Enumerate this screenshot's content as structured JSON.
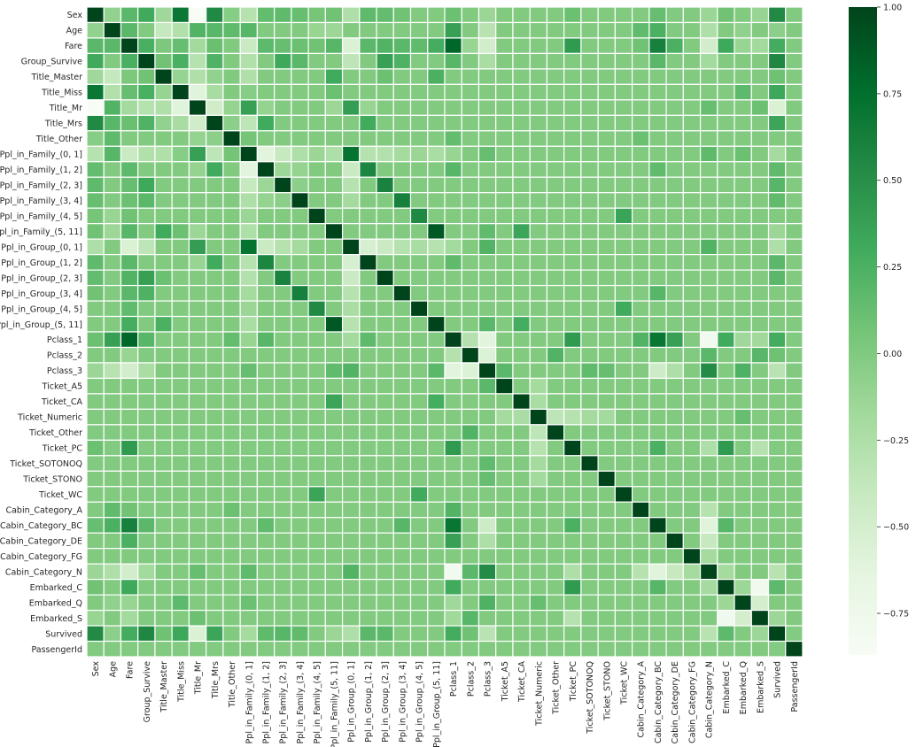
{
  "chart_data": {
    "type": "heatmap",
    "title": "",
    "xlabel": "",
    "ylabel": "",
    "colormap": "Greens",
    "colormap_stops": [
      "#f7fcf5",
      "#e5f5e0",
      "#c7e9c0",
      "#a1d99b",
      "#74c476",
      "#41ab5d",
      "#238b45",
      "#006d2c",
      "#00441b"
    ],
    "cell_border_color": "#ffffff",
    "value_range": [
      -0.87,
      1.0
    ],
    "colorbar": {
      "ticks": [
        1.0,
        0.75,
        0.5,
        0.25,
        0.0,
        -0.25,
        -0.5,
        -0.75
      ],
      "tick_labels": [
        "1.00",
        "0.75",
        "0.50",
        "0.25",
        "0.00",
        "−0.25",
        "−0.50",
        "−0.75"
      ]
    },
    "labels": [
      "Sex",
      "Age",
      "Fare",
      "Group_Survive",
      "Title_Master",
      "Title_Miss",
      "Title_Mr",
      "Title_Mrs",
      "Title_Other",
      "Ppl_in_Family_(0, 1]",
      "Ppl_in_Family_(1, 2]",
      "Ppl_in_Family_(2, 3]",
      "Ppl_in_Family_(3, 4]",
      "Ppl_in_Family_(4, 5]",
      "Ppl_in_Family_(5, 11]",
      "Ppl_in_Group_(0, 1]",
      "Ppl_in_Group_(1, 2]",
      "Ppl_in_Group_(2, 3]",
      "Ppl_in_Group_(3, 4]",
      "Ppl_in_Group_(4, 5]",
      "Ppl_in_Group_(5, 11]",
      "Pclass_1",
      "Pclass_2",
      "Pclass_3",
      "Ticket_A5",
      "Ticket_CA",
      "Ticket_Numeric",
      "Ticket_Other",
      "Ticket_PC",
      "Ticket_SOTONOQ",
      "Ticket_STONO",
      "Ticket_WC",
      "Cabin_Category_A",
      "Cabin_Category_BC",
      "Cabin_Category_DE",
      "Cabin_Category_FG",
      "Cabin_Category_N",
      "Embarked_C",
      "Embarked_Q",
      "Embarked_S",
      "Survived",
      "PassengerId"
    ],
    "default_value": 0.0,
    "diagonal_value": 1.0,
    "pairs": [
      [
        "Sex",
        "Age",
        -0.09
      ],
      [
        "Sex",
        "Fare",
        0.18
      ],
      [
        "Sex",
        "Group_Survive",
        0.31
      ],
      [
        "Sex",
        "Title_Master",
        -0.16
      ],
      [
        "Sex",
        "Title_Miss",
        0.69
      ],
      [
        "Sex",
        "Title_Mr",
        -0.87
      ],
      [
        "Sex",
        "Title_Mrs",
        0.55
      ],
      [
        "Sex",
        "Title_Other",
        -0.03
      ],
      [
        "Sex",
        "Ppl_in_Family_(0, 1]",
        -0.3
      ],
      [
        "Sex",
        "Ppl_in_Family_(1, 2]",
        0.14
      ],
      [
        "Sex",
        "Ppl_in_Family_(2, 3]",
        0.16
      ],
      [
        "Sex",
        "Ppl_in_Family_(3, 4]",
        0.12
      ],
      [
        "Sex",
        "Ppl_in_Family_(4, 5]",
        0.05
      ],
      [
        "Sex",
        "Ppl_in_Family_(5, 11]",
        0.08
      ],
      [
        "Sex",
        "Ppl_in_Group_(0, 1]",
        -0.25
      ],
      [
        "Sex",
        "Ppl_in_Group_(1, 2]",
        0.16
      ],
      [
        "Sex",
        "Ppl_in_Group_(2, 3]",
        0.14
      ],
      [
        "Sex",
        "Ppl_in_Group_(3, 4]",
        0.08
      ],
      [
        "Sex",
        "Pclass_1",
        0.1
      ],
      [
        "Sex",
        "Pclass_3",
        -0.14
      ],
      [
        "Sex",
        "Ticket_PC",
        0.1
      ],
      [
        "Sex",
        "Cabin_Category_BC",
        0.12
      ],
      [
        "Sex",
        "Cabin_Category_N",
        -0.14
      ],
      [
        "Sex",
        "Embarked_C",
        0.08
      ],
      [
        "Sex",
        "Embarked_S",
        -0.12
      ],
      [
        "Sex",
        "Survived",
        0.54
      ],
      [
        "Age",
        "Fare",
        0.18
      ],
      [
        "Age",
        "Title_Master",
        -0.39
      ],
      [
        "Age",
        "Title_Miss",
        -0.27
      ],
      [
        "Age",
        "Title_Mr",
        0.22
      ],
      [
        "Age",
        "Title_Mrs",
        0.19
      ],
      [
        "Age",
        "Title_Other",
        0.16
      ],
      [
        "Age",
        "Ppl_in_Family_(0, 1]",
        0.2
      ],
      [
        "Age",
        "Ppl_in_Family_(4, 5]",
        -0.12
      ],
      [
        "Age",
        "Ppl_in_Family_(5, 11]",
        -0.15
      ],
      [
        "Age",
        "Pclass_1",
        0.38
      ],
      [
        "Age",
        "Pclass_2",
        0.0
      ],
      [
        "Age",
        "Pclass_3",
        -0.31
      ],
      [
        "Age",
        "Cabin_Category_A",
        0.15
      ],
      [
        "Age",
        "Cabin_Category_BC",
        0.25
      ],
      [
        "Age",
        "Cabin_Category_N",
        -0.25
      ],
      [
        "Age",
        "Embarked_Q",
        -0.08
      ],
      [
        "Age",
        "Survived",
        -0.06
      ],
      [
        "Fare",
        "Group_Survive",
        0.26
      ],
      [
        "Fare",
        "Title_Master",
        0.02
      ],
      [
        "Fare",
        "Title_Miss",
        0.12
      ],
      [
        "Fare",
        "Title_Mr",
        -0.18
      ],
      [
        "Fare",
        "Title_Mrs",
        0.11
      ],
      [
        "Fare",
        "Ppl_in_Family_(0, 1]",
        -0.42
      ],
      [
        "Fare",
        "Ppl_in_Family_(1, 2]",
        0.17
      ],
      [
        "Fare",
        "Ppl_in_Family_(2, 3]",
        0.12
      ],
      [
        "Fare",
        "Ppl_in_Family_(3, 4]",
        0.1
      ],
      [
        "Fare",
        "Ppl_in_Family_(4, 5]",
        0.08
      ],
      [
        "Fare",
        "Ppl_in_Family_(5, 11]",
        0.2
      ],
      [
        "Fare",
        "Ppl_in_Group_(0, 1]",
        -0.55
      ],
      [
        "Fare",
        "Ppl_in_Group_(1, 2]",
        0.18
      ],
      [
        "Fare",
        "Ppl_in_Group_(2, 3]",
        0.22
      ],
      [
        "Fare",
        "Ppl_in_Group_(3, 4]",
        0.18
      ],
      [
        "Fare",
        "Ppl_in_Group_(4, 5]",
        0.15
      ],
      [
        "Fare",
        "Ppl_in_Group_(5, 11]",
        0.28
      ],
      [
        "Fare",
        "Pclass_1",
        0.8
      ],
      [
        "Fare",
        "Pclass_2",
        -0.12
      ],
      [
        "Fare",
        "Pclass_3",
        -0.48
      ],
      [
        "Fare",
        "Ticket_PC",
        0.42
      ],
      [
        "Fare",
        "Cabin_Category_A",
        0.08
      ],
      [
        "Fare",
        "Cabin_Category_BC",
        0.62
      ],
      [
        "Fare",
        "Cabin_Category_DE",
        0.25
      ],
      [
        "Fare",
        "Cabin_Category_N",
        -0.48
      ],
      [
        "Fare",
        "Embarked_C",
        0.32
      ],
      [
        "Fare",
        "Embarked_Q",
        -0.12
      ],
      [
        "Fare",
        "Embarked_S",
        -0.18
      ],
      [
        "Fare",
        "Survived",
        0.29
      ],
      [
        "Group_Survive",
        "Title_Master",
        0.08
      ],
      [
        "Group_Survive",
        "Title_Miss",
        0.26
      ],
      [
        "Group_Survive",
        "Title_Mr",
        -0.3
      ],
      [
        "Group_Survive",
        "Title_Mrs",
        0.23
      ],
      [
        "Group_Survive",
        "Ppl_in_Family_(0, 1]",
        -0.27
      ],
      [
        "Group_Survive",
        "Ppl_in_Family_(2, 3]",
        0.32
      ],
      [
        "Group_Survive",
        "Ppl_in_Family_(3, 4]",
        0.18
      ],
      [
        "Group_Survive",
        "Ppl_in_Group_(0, 1]",
        -0.35
      ],
      [
        "Group_Survive",
        "Ppl_in_Group_(2, 3]",
        0.38
      ],
      [
        "Group_Survive",
        "Ppl_in_Group_(3, 4]",
        0.24
      ],
      [
        "Group_Survive",
        "Pclass_1",
        0.2
      ],
      [
        "Group_Survive",
        "Pclass_3",
        -0.22
      ],
      [
        "Group_Survive",
        "Cabin_Category_BC",
        0.18
      ],
      [
        "Group_Survive",
        "Cabin_Category_N",
        -0.18
      ],
      [
        "Group_Survive",
        "Survived",
        0.56
      ],
      [
        "Title_Master",
        "Title_Miss",
        -0.11
      ],
      [
        "Title_Master",
        "Title_Mr",
        -0.26
      ],
      [
        "Title_Master",
        "Title_Mrs",
        -0.09
      ],
      [
        "Title_Master",
        "Ppl_in_Family_(0, 1]",
        -0.26
      ],
      [
        "Title_Master",
        "Ppl_in_Family_(5, 11]",
        0.3
      ],
      [
        "Title_Master",
        "Ppl_in_Group_(5, 11]",
        0.25
      ],
      [
        "Title_Master",
        "Ppl_in_Group_(2, 3]",
        0.1
      ],
      [
        "Title_Master",
        "Survived",
        0.09
      ],
      [
        "Title_Miss",
        "Title_Mr",
        -0.6
      ],
      [
        "Title_Miss",
        "Title_Mrs",
        -0.21
      ],
      [
        "Title_Miss",
        "Ppl_in_Family_(0, 1]",
        -0.03
      ],
      [
        "Title_Miss",
        "Ppl_in_Family_(5, 11]",
        0.1
      ],
      [
        "Title_Miss",
        "Embarked_Q",
        0.17
      ],
      [
        "Title_Miss",
        "Survived",
        0.33
      ],
      [
        "Title_Mr",
        "Title_Mrs",
        -0.47
      ],
      [
        "Title_Mr",
        "Title_Other",
        -0.1
      ],
      [
        "Title_Mr",
        "Ppl_in_Family_(0, 1]",
        0.38
      ],
      [
        "Title_Mr",
        "Ppl_in_Family_(1, 2]",
        -0.1
      ],
      [
        "Title_Mr",
        "Ppl_in_Family_(5, 11]",
        -0.15
      ],
      [
        "Title_Mr",
        "Ppl_in_Group_(0, 1]",
        0.4
      ],
      [
        "Title_Mr",
        "Ppl_in_Group_(1, 2]",
        -0.12
      ],
      [
        "Title_Mr",
        "Cabin_Category_N",
        0.12
      ],
      [
        "Title_Mr",
        "Embarked_S",
        0.1
      ],
      [
        "Title_Mr",
        "Survived",
        -0.55
      ],
      [
        "Title_Mrs",
        "Title_Other",
        -0.06
      ],
      [
        "Title_Mrs",
        "Ppl_in_Family_(0, 1]",
        -0.35
      ],
      [
        "Title_Mrs",
        "Ppl_in_Family_(1, 2]",
        0.3
      ],
      [
        "Title_Mrs",
        "Ppl_in_Group_(1, 2]",
        0.3
      ],
      [
        "Title_Mrs",
        "Survived",
        0.34
      ],
      [
        "Title_Other",
        "Ppl_in_Family_(0, 1]",
        0.06
      ],
      [
        "Title_Other",
        "Pclass_1",
        0.14
      ],
      [
        "Title_Other",
        "Cabin_Category_A",
        0.1
      ],
      [
        "Ppl_in_Family_(0, 1]",
        "Ppl_in_Family_(1, 2]",
        -0.62
      ],
      [
        "Ppl_in_Family_(0, 1]",
        "Ppl_in_Family_(2, 3]",
        -0.4
      ],
      [
        "Ppl_in_Family_(0, 1]",
        "Ppl_in_Family_(3, 4]",
        -0.25
      ],
      [
        "Ppl_in_Family_(0, 1]",
        "Ppl_in_Family_(4, 5]",
        -0.14
      ],
      [
        "Ppl_in_Family_(0, 1]",
        "Ppl_in_Family_(5, 11]",
        -0.25
      ],
      [
        "Ppl_in_Family_(0, 1]",
        "Ppl_in_Group_(0, 1]",
        0.72
      ],
      [
        "Ppl_in_Family_(0, 1]",
        "Ppl_in_Group_(1, 2]",
        -0.3
      ],
      [
        "Ppl_in_Family_(0, 1]",
        "Ppl_in_Group_(2, 3]",
        -0.28
      ],
      [
        "Ppl_in_Family_(0, 1]",
        "Ppl_in_Group_(3, 4]",
        -0.2
      ],
      [
        "Ppl_in_Family_(0, 1]",
        "Ppl_in_Group_(4, 5]",
        -0.14
      ],
      [
        "Ppl_in_Family_(0, 1]",
        "Ppl_in_Group_(5, 11]",
        -0.22
      ],
      [
        "Ppl_in_Family_(0, 1]",
        "Pclass_1",
        -0.12
      ],
      [
        "Ppl_in_Family_(0, 1]",
        "Pclass_3",
        0.12
      ],
      [
        "Ppl_in_Family_(0, 1]",
        "Cabin_Category_N",
        0.16
      ],
      [
        "Ppl_in_Family_(0, 1]",
        "Embarked_Q",
        0.1
      ],
      [
        "Ppl_in_Family_(0, 1]",
        "Survived",
        -0.2
      ],
      [
        "Ppl_in_Family_(1, 2]",
        "Ppl_in_Family_(2, 3]",
        -0.15
      ],
      [
        "Ppl_in_Family_(1, 2]",
        "Ppl_in_Family_(3, 4]",
        -0.1
      ],
      [
        "Ppl_in_Family_(1, 2]",
        "Ppl_in_Group_(0, 1]",
        -0.42
      ],
      [
        "Ppl_in_Family_(1, 2]",
        "Ppl_in_Group_(1, 2]",
        0.58
      ],
      [
        "Ppl_in_Family_(1, 2]",
        "Pclass_1",
        0.2
      ],
      [
        "Ppl_in_Family_(1, 2]",
        "Cabin_Category_BC",
        0.15
      ],
      [
        "Ppl_in_Family_(1, 2]",
        "Survived",
        0.16
      ],
      [
        "Ppl_in_Family_(2, 3]",
        "Ppl_in_Family_(3, 4]",
        -0.06
      ],
      [
        "Ppl_in_Family_(2, 3]",
        "Ppl_in_Group_(0, 1]",
        -0.3
      ],
      [
        "Ppl_in_Family_(2, 3]",
        "Ppl_in_Group_(2, 3]",
        0.6
      ],
      [
        "Ppl_in_Family_(2, 3]",
        "Survived",
        0.2
      ],
      [
        "Ppl_in_Family_(3, 4]",
        "Ppl_in_Group_(3, 4]",
        0.62
      ],
      [
        "Ppl_in_Family_(3, 4]",
        "Ppl_in_Group_(0, 1]",
        -0.2
      ],
      [
        "Ppl_in_Family_(3, 4]",
        "Survived",
        0.15
      ],
      [
        "Ppl_in_Family_(4, 5]",
        "Ppl_in_Group_(4, 5]",
        0.55
      ],
      [
        "Ppl_in_Family_(4, 5]",
        "Ticket_WC",
        0.35
      ],
      [
        "Ppl_in_Family_(5, 11]",
        "Ppl_in_Group_(5, 11]",
        0.88
      ],
      [
        "Ppl_in_Family_(5, 11]",
        "Ticket_CA",
        0.34
      ],
      [
        "Ppl_in_Family_(5, 11]",
        "Pclass_3",
        0.15
      ],
      [
        "Ppl_in_Family_(5, 11]",
        "Survived",
        -0.14
      ],
      [
        "Ppl_in_Group_(0, 1]",
        "Ppl_in_Group_(1, 2]",
        -0.52
      ],
      [
        "Ppl_in_Group_(0, 1]",
        "Ppl_in_Group_(2, 3]",
        -0.42
      ],
      [
        "Ppl_in_Group_(0, 1]",
        "Ppl_in_Group_(3, 4]",
        -0.3
      ],
      [
        "Ppl_in_Group_(0, 1]",
        "Ppl_in_Group_(4, 5]",
        -0.22
      ],
      [
        "Ppl_in_Group_(0, 1]",
        "Ppl_in_Group_(5, 11]",
        -0.3
      ],
      [
        "Ppl_in_Group_(0, 1]",
        "Pclass_1",
        -0.18
      ],
      [
        "Ppl_in_Group_(0, 1]",
        "Pclass_3",
        0.22
      ],
      [
        "Ppl_in_Group_(0, 1]",
        "Cabin_Category_N",
        0.22
      ],
      [
        "Ppl_in_Group_(0, 1]",
        "Survived",
        -0.25
      ],
      [
        "Ppl_in_Group_(1, 2]",
        "Pclass_1",
        0.16
      ],
      [
        "Ppl_in_Group_(1, 2]",
        "Survived",
        0.18
      ],
      [
        "Ppl_in_Group_(2, 3]",
        "Survived",
        0.18
      ],
      [
        "Ppl_in_Group_(3, 4]",
        "Cabin_Category_BC",
        0.2
      ],
      [
        "Ppl_in_Group_(4, 5]",
        "Ticket_WC",
        0.3
      ],
      [
        "Ppl_in_Group_(5, 11]",
        "Ticket_CA",
        0.28
      ],
      [
        "Ppl_in_Group_(5, 11]",
        "Pclass_3",
        0.18
      ],
      [
        "Pclass_1",
        "Pclass_2",
        -0.29
      ],
      [
        "Pclass_1",
        "Pclass_3",
        -0.62
      ],
      [
        "Pclass_1",
        "Ticket_PC",
        0.42
      ],
      [
        "Pclass_1",
        "Cabin_Category_A",
        0.22
      ],
      [
        "Pclass_1",
        "Cabin_Category_BC",
        0.7
      ],
      [
        "Pclass_1",
        "Cabin_Category_DE",
        0.38
      ],
      [
        "Pclass_1",
        "Cabin_Category_N",
        -0.79
      ],
      [
        "Pclass_1",
        "Embarked_C",
        0.3
      ],
      [
        "Pclass_1",
        "Embarked_Q",
        -0.16
      ],
      [
        "Pclass_1",
        "Embarked_S",
        -0.17
      ],
      [
        "Pclass_1",
        "Survived",
        0.29
      ],
      [
        "Pclass_2",
        "Pclass_3",
        -0.57
      ],
      [
        "Pclass_2",
        "Ticket_Other",
        0.22
      ],
      [
        "Pclass_2",
        "Cabin_Category_N",
        0.18
      ],
      [
        "Pclass_2",
        "Embarked_S",
        0.2
      ],
      [
        "Pclass_2",
        "Survived",
        0.09
      ],
      [
        "Pclass_3",
        "Ticket_A5",
        0.18
      ],
      [
        "Pclass_3",
        "Ticket_SOTONOQ",
        0.15
      ],
      [
        "Pclass_3",
        "Ticket_STONO",
        0.12
      ],
      [
        "Pclass_3",
        "Cabin_Category_BC",
        -0.45
      ],
      [
        "Pclass_3",
        "Cabin_Category_DE",
        -0.25
      ],
      [
        "Pclass_3",
        "Cabin_Category_N",
        0.53
      ],
      [
        "Pclass_3",
        "Embarked_Q",
        0.24
      ],
      [
        "Pclass_3",
        "Survived",
        -0.32
      ],
      [
        "Ticket_A5",
        "Ticket_Numeric",
        -0.2
      ],
      [
        "Ticket_CA",
        "Ticket_Numeric",
        -0.22
      ],
      [
        "Ticket_Numeric",
        "Ticket_Other",
        -0.35
      ],
      [
        "Ticket_Numeric",
        "Ticket_PC",
        -0.3
      ],
      [
        "Ticket_Numeric",
        "Ticket_SOTONOQ",
        -0.2
      ],
      [
        "Ticket_Numeric",
        "Ticket_STONO",
        -0.18
      ],
      [
        "Ticket_Numeric",
        "Embarked_Q",
        0.12
      ],
      [
        "Ticket_PC",
        "Cabin_Category_BC",
        0.25
      ],
      [
        "Ticket_PC",
        "Cabin_Category_N",
        -0.25
      ],
      [
        "Ticket_PC",
        "Embarked_C",
        0.42
      ],
      [
        "Ticket_PC",
        "Embarked_S",
        -0.3
      ],
      [
        "Cabin_Category_A",
        "Cabin_Category_N",
        -0.3
      ],
      [
        "Cabin_Category_BC",
        "Cabin_Category_N",
        -0.6
      ],
      [
        "Cabin_Category_BC",
        "Embarked_C",
        0.2
      ],
      [
        "Cabin_Category_DE",
        "Cabin_Category_N",
        -0.4
      ],
      [
        "Cabin_Category_FG",
        "Cabin_Category_N",
        -0.2
      ],
      [
        "Cabin_Category_N",
        "Embarked_C",
        -0.2
      ],
      [
        "Cabin_Category_N",
        "Survived",
        -0.31
      ],
      [
        "Embarked_C",
        "Embarked_Q",
        -0.15
      ],
      [
        "Embarked_C",
        "Embarked_S",
        -0.78
      ],
      [
        "Embarked_C",
        "Survived",
        0.17
      ],
      [
        "Embarked_Q",
        "Embarked_S",
        -0.5
      ],
      [
        "Embarked_S",
        "Survived",
        -0.15
      ],
      [
        "Survived",
        "PassengerId",
        -0.01
      ]
    ]
  }
}
